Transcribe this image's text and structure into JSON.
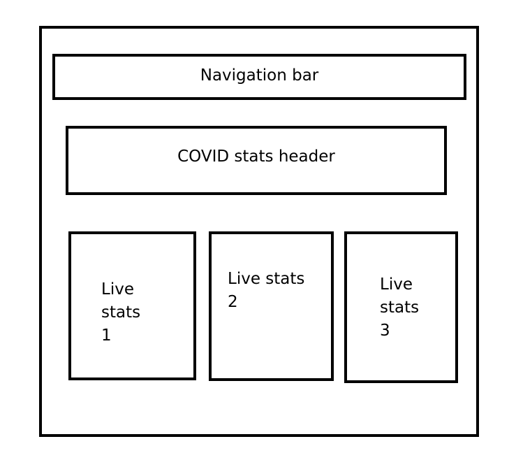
{
  "navigation": {
    "label": "Navigation bar"
  },
  "header": {
    "label": "COVID stats header"
  },
  "cards": [
    {
      "label": "Live\nstats\n1"
    },
    {
      "label": "Live stats\n2"
    },
    {
      "label": "Live\nstats\n3"
    }
  ]
}
